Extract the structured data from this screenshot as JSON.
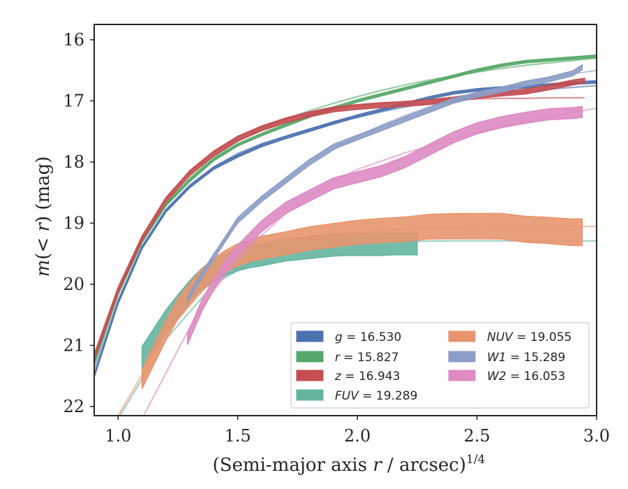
{
  "chart_data": {
    "type": "line",
    "xlabel": "(Semi-major axis r / arcsec)",
    "xlabel_parts": {
      "main": "(Semi-major axis ",
      "var": "r",
      "rest": " / arcsec)",
      "power": "1/4"
    },
    "ylabel": "m(<r) (mag)",
    "ylabel_parts": {
      "m": "m",
      "lt": "(< ",
      "r": "r",
      "close": ")",
      "unit": " (mag)"
    },
    "xlim": [
      0.9,
      3.0
    ],
    "ylim": [
      22.15,
      15.75
    ],
    "y_inverted": true,
    "x_ticks": [
      1.0,
      1.5,
      2.0,
      2.5,
      3.0
    ],
    "x_tick_labels": [
      "1.0",
      "1.5",
      "2.0",
      "2.5",
      "3.0"
    ],
    "y_ticks": [
      16,
      17,
      18,
      19,
      20,
      21,
      22
    ],
    "y_tick_labels": [
      "16",
      "17",
      "18",
      "19",
      "20",
      "21",
      "22"
    ],
    "grid": false,
    "legend_placement": "lower-right",
    "series": [
      {
        "name": "g = 16.530",
        "band": "g",
        "value": "16.530",
        "color": "#4c72b0",
        "x": [
          0.9,
          1.0,
          1.1,
          1.2,
          1.3,
          1.4,
          1.5,
          1.6,
          1.7,
          1.8,
          1.9,
          2.0,
          2.1,
          2.2,
          2.3,
          2.4,
          2.5,
          2.6,
          2.7,
          2.8,
          2.9,
          3.0
        ],
        "y": [
          21.5,
          20.3,
          19.4,
          18.8,
          18.4,
          18.1,
          17.9,
          17.73,
          17.6,
          17.48,
          17.36,
          17.25,
          17.15,
          17.05,
          16.95,
          16.87,
          16.82,
          16.79,
          16.77,
          16.74,
          16.71,
          16.69
        ],
        "band_halfwidth": 0.02,
        "model_y": [
          21.4,
          20.25,
          19.38,
          18.78,
          18.38,
          18.08,
          17.86,
          17.7,
          17.58,
          17.46,
          17.36,
          17.27,
          17.18,
          17.1,
          17.03,
          16.97,
          16.92,
          16.88,
          16.84,
          16.81,
          16.78,
          16.75
        ]
      },
      {
        "name": "r = 15.827",
        "band": "r",
        "value": "15.827",
        "color": "#55a868",
        "x": [
          0.9,
          1.0,
          1.1,
          1.2,
          1.3,
          1.4,
          1.5,
          1.6,
          1.7,
          1.8,
          1.9,
          2.0,
          2.1,
          2.2,
          2.3,
          2.4,
          2.5,
          2.6,
          2.7,
          2.8,
          2.9,
          3.0
        ],
        "y": [
          21.3,
          20.15,
          19.3,
          18.7,
          18.3,
          17.96,
          17.72,
          17.55,
          17.4,
          17.25,
          17.12,
          17.0,
          16.9,
          16.8,
          16.7,
          16.6,
          16.5,
          16.42,
          16.36,
          16.33,
          16.3,
          16.27
        ],
        "band_halfwidth": 0.02,
        "model_y": [
          21.2,
          20.08,
          19.26,
          18.68,
          18.26,
          17.92,
          17.66,
          17.46,
          17.3,
          17.16,
          17.04,
          16.93,
          16.83,
          16.74,
          16.66,
          16.59,
          16.53,
          16.47,
          16.42,
          16.38,
          16.34,
          16.3
        ]
      },
      {
        "name": "z = 16.943",
        "band": "z",
        "value": "16.943",
        "color": "#c44e52",
        "x": [
          0.9,
          1.0,
          1.1,
          1.2,
          1.3,
          1.4,
          1.5,
          1.6,
          1.7,
          1.8,
          1.9,
          2.0,
          2.1,
          2.2,
          2.3,
          2.4,
          2.5,
          2.6,
          2.7,
          2.8,
          2.9,
          2.95
        ],
        "y": [
          21.2,
          20.1,
          19.25,
          18.62,
          18.18,
          17.86,
          17.62,
          17.45,
          17.32,
          17.22,
          17.14,
          17.1,
          17.07,
          17.05,
          17.02,
          16.98,
          16.92,
          16.88,
          16.85,
          16.78,
          16.7,
          16.67
        ],
        "band_halfwidth": 0.04,
        "model_y": [
          21.15,
          20.05,
          19.22,
          18.6,
          18.16,
          17.84,
          17.6,
          17.42,
          17.3,
          17.2,
          17.13,
          17.08,
          17.04,
          17.01,
          16.99,
          16.98,
          16.97,
          16.96,
          16.96,
          16.95,
          16.95,
          16.95
        ]
      },
      {
        "name": "FUV = 19.289",
        "band": "FUV",
        "value": "19.289",
        "color": "#64b5a0",
        "x": [
          1.1,
          1.15,
          1.2,
          1.25,
          1.3,
          1.35,
          1.4,
          1.45,
          1.5,
          1.55,
          1.6,
          1.65,
          1.7,
          1.75,
          1.8,
          1.85,
          1.9,
          1.95,
          2.0,
          2.05,
          2.1,
          2.15,
          2.2,
          2.25
        ],
        "y": [
          21.2,
          20.9,
          20.6,
          20.35,
          20.12,
          19.92,
          19.78,
          19.68,
          19.6,
          19.55,
          19.52,
          19.48,
          19.44,
          19.42,
          19.4,
          19.38,
          19.36,
          19.35,
          19.35,
          19.35,
          19.35,
          19.34,
          19.34,
          19.34
        ],
        "band_halfwidth": 0.18,
        "model_x": [
          1.0,
          1.2,
          1.4,
          1.6,
          1.8,
          2.0,
          2.2,
          2.4,
          2.6,
          2.8,
          3.0
        ],
        "model_y": [
          22.2,
          20.9,
          20.0,
          19.55,
          19.38,
          19.32,
          19.3,
          19.29,
          19.29,
          19.29,
          19.29
        ]
      },
      {
        "name": "NUV = 19.055",
        "band": "NUV",
        "value": "19.055",
        "color": "#e8956f",
        "x": [
          1.1,
          1.15,
          1.2,
          1.25,
          1.3,
          1.35,
          1.4,
          1.45,
          1.5,
          1.55,
          1.6,
          1.7,
          1.8,
          1.9,
          2.0,
          2.1,
          2.2,
          2.3,
          2.4,
          2.5,
          2.6,
          2.7,
          2.8,
          2.9,
          2.94
        ],
        "y": [
          21.55,
          21.15,
          20.75,
          20.4,
          20.15,
          19.92,
          19.75,
          19.62,
          19.52,
          19.45,
          19.4,
          19.33,
          19.25,
          19.2,
          19.15,
          19.12,
          19.1,
          19.06,
          19.05,
          19.05,
          19.05,
          19.1,
          19.12,
          19.15,
          19.15
        ],
        "band_halfwidth": 0.16,
        "band_growth": 0.06,
        "model_x": [
          1.0,
          1.2,
          1.4,
          1.6,
          1.8,
          2.0,
          2.2,
          2.4,
          2.6,
          2.8,
          3.0
        ],
        "model_y": [
          22.15,
          20.8,
          19.9,
          19.45,
          19.25,
          19.15,
          19.1,
          19.07,
          19.06,
          19.06,
          19.055
        ]
      },
      {
        "name": "W1 = 15.289",
        "band": "W1",
        "value": "15.289",
        "color": "#8c9dc7",
        "x": [
          1.29,
          1.35,
          1.4,
          1.45,
          1.5,
          1.6,
          1.7,
          1.8,
          1.9,
          2.0,
          2.1,
          2.2,
          2.3,
          2.4,
          2.5,
          2.6,
          2.7,
          2.8,
          2.9,
          2.94
        ],
        "y": [
          20.25,
          19.85,
          19.55,
          19.25,
          18.95,
          18.6,
          18.3,
          18.0,
          17.75,
          17.6,
          17.45,
          17.3,
          17.15,
          17.0,
          16.9,
          16.82,
          16.72,
          16.65,
          16.55,
          16.45
        ],
        "band_halfwidth": 0.04,
        "model_x": [
          1.29,
          1.4,
          1.5,
          1.6,
          1.7,
          1.8,
          1.9,
          2.0,
          2.1,
          2.2,
          2.3,
          2.4,
          2.5,
          2.6,
          2.7,
          2.8,
          2.9,
          3.0
        ],
        "model_y": [
          20.2,
          19.5,
          19.0,
          18.65,
          18.35,
          18.05,
          17.8,
          17.58,
          17.4,
          17.24,
          17.1,
          16.98,
          16.87,
          16.78,
          16.7,
          16.63,
          16.56,
          16.5
        ]
      },
      {
        "name": "W2 = 16.053",
        "band": "W2",
        "value": "16.053",
        "color": "#dd8bc2",
        "x": [
          1.29,
          1.35,
          1.4,
          1.45,
          1.5,
          1.6,
          1.7,
          1.8,
          1.9,
          2.0,
          2.1,
          2.2,
          2.3,
          2.4,
          2.5,
          2.6,
          2.7,
          2.8,
          2.9,
          2.94
        ],
        "y": [
          20.9,
          20.35,
          20.0,
          19.7,
          19.45,
          19.05,
          18.75,
          18.55,
          18.35,
          18.25,
          18.15,
          18.0,
          17.8,
          17.6,
          17.45,
          17.35,
          17.28,
          17.22,
          17.2,
          17.18
        ],
        "band_halfwidth": 0.09,
        "model_x": [
          1.1,
          1.2,
          1.3,
          1.4,
          1.5,
          1.6,
          1.7,
          1.8,
          1.9,
          2.0,
          2.2,
          2.4,
          2.6,
          2.8,
          3.0
        ],
        "model_y": [
          22.2,
          21.45,
          20.7,
          20.1,
          19.6,
          19.2,
          18.85,
          18.55,
          18.32,
          18.12,
          17.85,
          17.62,
          17.42,
          17.26,
          17.12
        ]
      }
    ]
  }
}
